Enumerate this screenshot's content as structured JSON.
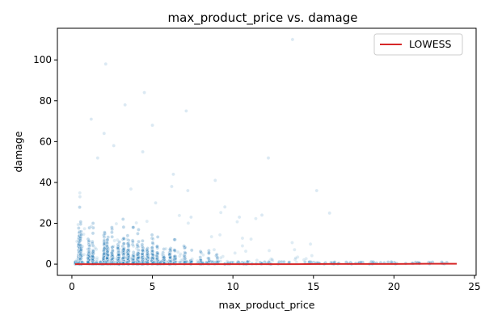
{
  "chart_data": {
    "type": "scatter",
    "title": "max_product_price vs. damage",
    "xlabel": "max_product_price",
    "ylabel": "damage",
    "xlim": [
      -0.9,
      25.1
    ],
    "ylim": [
      -5.5,
      115.5
    ],
    "xticks": [
      0,
      5,
      10,
      15,
      20,
      25
    ],
    "yticks": [
      0,
      20,
      40,
      60,
      80,
      100
    ],
    "grid": false,
    "legend": {
      "placement": "top-right",
      "entries": [
        "LOWESS"
      ]
    },
    "colors": {
      "points": "#1f77b4",
      "lowess": "#d62728"
    },
    "series": [
      {
        "name": "LOWESS",
        "type": "line",
        "x": [
          0.2,
          2,
          4,
          6,
          8,
          10,
          12,
          14,
          16,
          18,
          20,
          22,
          23.9
        ],
        "y": [
          0,
          0,
          0,
          0,
          0,
          0,
          0,
          0,
          0.1,
          0.1,
          0.1,
          0.2,
          0.2
        ]
      },
      {
        "type": "scatter",
        "x": [
          2.1,
          4.5,
          3.3,
          13.7,
          7.1,
          5.0,
          1.2,
          4.4,
          2.0,
          1.6,
          12.2,
          2.6,
          0.5,
          6.3,
          8.9,
          15.2,
          16.0,
          11.8,
          7.2,
          7.4,
          6.2,
          5.2,
          9.5,
          10.4
        ],
        "y": [
          98,
          84,
          78,
          110,
          75,
          68,
          71,
          55,
          64,
          52,
          52,
          58,
          33,
          44,
          41,
          36,
          25,
          24,
          36,
          23,
          38,
          30,
          28,
          23
        ]
      }
    ]
  }
}
